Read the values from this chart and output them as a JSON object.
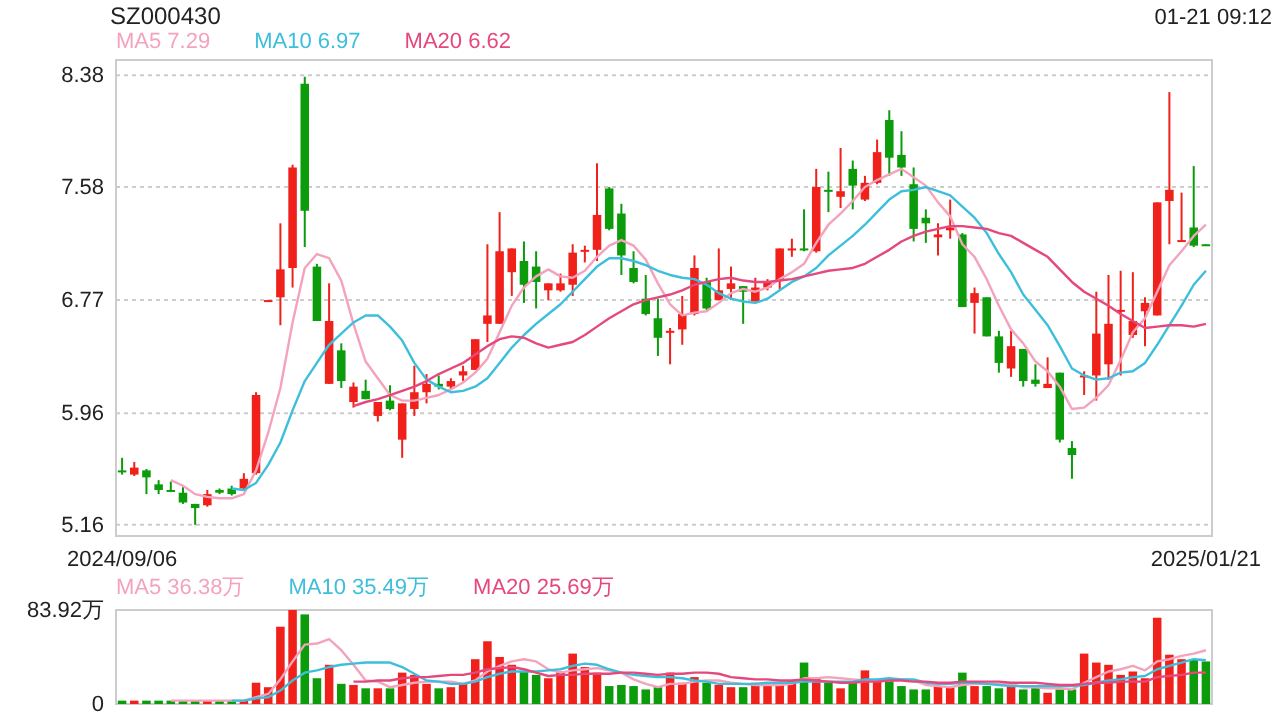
{
  "chart_data": [
    {
      "type": "candlestick",
      "title": "SZ000430",
      "annotations": [
        "01-21 09:12"
      ],
      "categories": [
        "2024/09/06",
        null,
        null,
        null,
        null,
        null,
        null,
        null,
        null,
        null,
        null,
        null,
        null,
        null,
        null,
        null,
        null,
        null,
        null,
        null,
        null,
        null,
        null,
        null,
        null,
        null,
        null,
        null,
        null,
        null,
        null,
        null,
        null,
        null,
        null,
        null,
        null,
        null,
        null,
        null,
        null,
        null,
        null,
        null,
        null,
        null,
        null,
        null,
        null,
        null,
        null,
        null,
        null,
        null,
        null,
        null,
        null,
        null,
        null,
        null,
        null,
        null,
        null,
        null,
        null,
        null,
        null,
        null,
        null,
        null,
        null,
        null,
        null,
        null,
        null,
        null,
        null,
        null,
        null,
        null,
        null,
        null,
        null,
        null,
        null,
        null,
        null,
        null,
        null,
        "2025/01/21"
      ],
      "ohlc": [
        [
          5.55,
          5.64,
          5.52,
          5.54
        ],
        [
          5.52,
          5.61,
          5.51,
          5.57
        ],
        [
          5.55,
          5.56,
          5.38,
          5.5
        ],
        [
          5.45,
          5.48,
          5.38,
          5.41
        ],
        [
          5.41,
          5.47,
          5.4,
          5.4
        ],
        [
          5.39,
          5.43,
          5.31,
          5.32
        ],
        [
          5.31,
          5.31,
          5.16,
          5.28
        ],
        [
          5.3,
          5.41,
          5.29,
          5.38
        ],
        [
          5.41,
          5.42,
          5.38,
          5.39
        ],
        [
          5.42,
          5.44,
          5.37,
          5.38
        ],
        [
          5.42,
          5.53,
          5.41,
          5.49
        ],
        [
          5.53,
          6.11,
          5.52,
          6.09
        ],
        [
          6.76,
          6.77,
          6.76,
          6.77
        ],
        [
          6.79,
          7.32,
          6.59,
          6.99
        ],
        [
          7.0,
          7.74,
          6.86,
          7.72
        ],
        [
          8.32,
          8.37,
          7.15,
          7.41
        ],
        [
          7.01,
          7.03,
          6.62,
          6.62
        ],
        [
          6.17,
          6.89,
          6.17,
          6.62
        ],
        [
          6.41,
          6.46,
          6.14,
          6.19
        ],
        [
          6.04,
          6.18,
          6.0,
          6.15
        ],
        [
          6.12,
          6.2,
          6.06,
          6.06
        ],
        [
          5.94,
          6.04,
          5.9,
          6.04
        ],
        [
          6.05,
          6.16,
          5.98,
          5.99
        ],
        [
          5.77,
          6.03,
          5.64,
          6.03
        ],
        [
          5.99,
          6.3,
          5.94,
          6.11
        ],
        [
          6.11,
          6.24,
          6.03,
          6.17
        ],
        [
          6.17,
          6.23,
          6.13,
          6.15
        ],
        [
          6.15,
          6.21,
          6.13,
          6.19
        ],
        [
          6.23,
          6.3,
          6.19,
          6.26
        ],
        [
          6.27,
          6.49,
          6.27,
          6.49
        ],
        [
          6.6,
          7.17,
          6.47,
          6.66
        ],
        [
          6.6,
          7.4,
          6.6,
          7.12
        ],
        [
          6.97,
          7.14,
          6.8,
          7.14
        ],
        [
          7.05,
          7.19,
          6.75,
          6.88
        ],
        [
          7.01,
          7.12,
          6.71,
          6.9
        ],
        [
          6.84,
          6.89,
          6.77,
          6.89
        ],
        [
          6.84,
          6.96,
          6.83,
          6.89
        ],
        [
          6.88,
          7.17,
          6.8,
          7.11
        ],
        [
          7.12,
          7.16,
          7.04,
          7.13
        ],
        [
          7.13,
          7.75,
          7.05,
          7.38
        ],
        [
          7.57,
          7.58,
          7.27,
          7.28
        ],
        [
          7.39,
          7.46,
          6.95,
          7.09
        ],
        [
          7.0,
          7.12,
          6.89,
          6.9
        ],
        [
          6.78,
          6.95,
          6.66,
          6.67
        ],
        [
          6.64,
          6.78,
          6.37,
          6.5
        ],
        [
          6.54,
          6.57,
          6.31,
          6.55
        ],
        [
          6.56,
          6.8,
          6.45,
          6.67
        ],
        [
          6.67,
          7.09,
          6.66,
          7.0
        ],
        [
          6.9,
          6.93,
          6.7,
          6.71
        ],
        [
          6.77,
          7.14,
          6.77,
          6.84
        ],
        [
          6.85,
          7.01,
          6.77,
          6.89
        ],
        [
          6.87,
          6.87,
          6.6,
          6.83
        ],
        [
          6.76,
          6.93,
          6.76,
          6.86
        ],
        [
          6.86,
          6.92,
          6.84,
          6.9
        ],
        [
          6.91,
          7.14,
          6.85,
          7.14
        ],
        [
          7.13,
          7.21,
          7.08,
          7.14
        ],
        [
          7.14,
          7.42,
          7.12,
          7.13
        ],
        [
          7.12,
          7.71,
          7.11,
          7.58
        ],
        [
          7.56,
          7.69,
          7.4,
          7.55
        ],
        [
          7.51,
          7.86,
          7.43,
          7.55
        ],
        [
          7.71,
          7.77,
          7.42,
          7.59
        ],
        [
          7.49,
          7.66,
          7.48,
          7.61
        ],
        [
          7.61,
          7.92,
          7.6,
          7.83
        ],
        [
          8.06,
          8.13,
          7.66,
          7.79
        ],
        [
          7.81,
          7.98,
          7.66,
          7.72
        ],
        [
          7.6,
          7.72,
          7.19,
          7.28
        ],
        [
          7.36,
          7.42,
          7.18,
          7.32
        ],
        [
          7.22,
          7.32,
          7.09,
          7.24
        ],
        [
          7.27,
          7.49,
          7.21,
          7.29
        ],
        [
          7.24,
          7.25,
          6.72,
          6.72
        ],
        [
          6.75,
          6.86,
          6.53,
          6.82
        ],
        [
          6.79,
          6.79,
          6.51,
          6.51
        ],
        [
          6.51,
          6.55,
          6.25,
          6.32
        ],
        [
          6.28,
          6.55,
          6.22,
          6.44
        ],
        [
          6.42,
          6.42,
          6.15,
          6.19
        ],
        [
          6.2,
          6.31,
          6.15,
          6.17
        ],
        [
          6.14,
          6.36,
          6.14,
          6.17
        ],
        [
          6.25,
          6.25,
          5.75,
          5.77
        ],
        [
          5.71,
          5.76,
          5.49,
          5.66
        ],
        [
          6.23,
          6.26,
          6.09,
          6.23
        ],
        [
          6.23,
          6.83,
          6.05,
          6.53
        ],
        [
          6.31,
          6.95,
          6.2,
          6.6
        ],
        [
          6.7,
          6.98,
          6.23,
          6.7
        ],
        [
          6.52,
          6.97,
          6.5,
          6.62
        ],
        [
          6.69,
          6.79,
          6.44,
          6.75
        ],
        [
          6.66,
          7.47,
          6.66,
          7.47
        ],
        [
          7.48,
          8.26,
          7.17,
          7.56
        ],
        [
          7.19,
          7.54,
          7.19,
          7.2
        ],
        [
          7.29,
          7.73,
          7.15,
          7.16
        ],
        [
          7.17,
          7.17,
          7.16,
          7.16
        ]
      ],
      "colors": [
        "#0b9b0b",
        "#f0201b",
        "#0b9b0b",
        "#0b9b0b",
        "#0b9b0b",
        "#0b9b0b",
        "#0b9b0b",
        "#f0201b",
        "#0b9b0b",
        "#0b9b0b",
        "#f0201b",
        "#f0201b",
        "#f0201b",
        "#f0201b",
        "#f0201b",
        "#0b9b0b",
        "#0b9b0b",
        "#f0201b",
        "#0b9b0b",
        "#f0201b",
        "#0b9b0b",
        "#f0201b",
        "#0b9b0b",
        "#f0201b",
        "#f0201b",
        "#f0201b",
        "#0b9b0b",
        "#f0201b",
        "#f0201b",
        "#f0201b",
        "#f0201b",
        "#f0201b",
        "#f0201b",
        "#0b9b0b",
        "#0b9b0b",
        "#f0201b",
        "#f0201b",
        "#f0201b",
        "#f0201b",
        "#f0201b",
        "#0b9b0b",
        "#0b9b0b",
        "#0b9b0b",
        "#0b9b0b",
        "#0b9b0b",
        "#f0201b",
        "#f0201b",
        "#f0201b",
        "#0b9b0b",
        "#f0201b",
        "#f0201b",
        "#0b9b0b",
        "#f0201b",
        "#f0201b",
        "#f0201b",
        "#f0201b",
        "#0b9b0b",
        "#f0201b",
        "#0b9b0b",
        "#f0201b",
        "#0b9b0b",
        "#f0201b",
        "#f0201b",
        "#0b9b0b",
        "#0b9b0b",
        "#0b9b0b",
        "#0b9b0b",
        "#f0201b",
        "#f0201b",
        "#0b9b0b",
        "#f0201b",
        "#0b9b0b",
        "#0b9b0b",
        "#f0201b",
        "#0b9b0b",
        "#0b9b0b",
        "#f0201b",
        "#0b9b0b",
        "#0b9b0b",
        "#f0201b",
        "#f0201b",
        "#f0201b",
        "#f0201b",
        "#f0201b",
        "#f0201b",
        "#f0201b",
        "#f0201b",
        "#f0201b",
        "#0b9b0b",
        "#0b9b0b"
      ],
      "ylim": [
        5.08,
        8.49
      ],
      "yticks": [
        5.16,
        5.96,
        6.77,
        7.58,
        8.38
      ],
      "grid": "y",
      "legend": "top left",
      "series": [
        {
          "type": "line",
          "name": "MA5 7.29",
          "color": "#f4a3bd",
          "values": [
            null,
            null,
            null,
            null,
            5.48,
            5.44,
            5.38,
            5.36,
            5.35,
            5.35,
            5.38,
            5.55,
            5.82,
            6.14,
            6.61,
            7.0,
            7.1,
            7.07,
            6.91,
            6.6,
            6.33,
            6.21,
            6.09,
            6.05,
            6.05,
            6.07,
            6.09,
            6.13,
            6.18,
            6.25,
            6.35,
            6.54,
            6.73,
            6.86,
            6.94,
            6.99,
            6.94,
            6.93,
            6.98,
            7.08,
            7.16,
            7.2,
            7.16,
            7.06,
            6.89,
            6.74,
            6.66,
            6.68,
            6.69,
            6.75,
            6.82,
            6.85,
            6.83,
            6.86,
            6.92,
            6.97,
            7.03,
            7.18,
            7.31,
            7.39,
            7.48,
            7.58,
            7.63,
            7.67,
            7.71,
            7.65,
            7.59,
            7.47,
            7.37,
            7.17,
            7.08,
            6.92,
            6.73,
            6.56,
            6.46,
            6.33,
            6.26,
            6.15,
            5.99,
            6.0,
            6.07,
            6.16,
            6.34,
            6.54,
            6.64,
            6.83,
            7.02,
            7.12,
            7.23,
            7.31
          ]
        },
        {
          "type": "line",
          "name": "MA10 6.97",
          "color": "#3dbfdc",
          "values": [
            null,
            null,
            null,
            null,
            null,
            null,
            null,
            null,
            null,
            5.42,
            5.41,
            5.46,
            5.59,
            5.75,
            5.98,
            6.19,
            6.32,
            6.45,
            6.53,
            6.61,
            6.66,
            6.66,
            6.58,
            6.48,
            6.32,
            6.2,
            6.15,
            6.11,
            6.12,
            6.15,
            6.21,
            6.32,
            6.43,
            6.52,
            6.6,
            6.67,
            6.74,
            6.83,
            6.92,
            7.01,
            7.07,
            7.07,
            7.05,
            7.02,
            6.98,
            6.95,
            6.93,
            6.92,
            6.88,
            6.82,
            6.78,
            6.76,
            6.75,
            6.78,
            6.84,
            6.9,
            6.94,
            7.0,
            7.09,
            7.16,
            7.23,
            7.31,
            7.4,
            7.49,
            7.55,
            7.56,
            7.58,
            7.55,
            7.52,
            7.44,
            7.36,
            7.25,
            7.1,
            6.97,
            6.81,
            6.7,
            6.59,
            6.44,
            6.28,
            6.23,
            6.2,
            6.21,
            6.25,
            6.26,
            6.32,
            6.45,
            6.59,
            6.73,
            6.88,
            6.98
          ]
        },
        {
          "type": "line",
          "name": "MA20 6.62",
          "color": "#e5487c",
          "values": [
            null,
            null,
            null,
            null,
            null,
            null,
            null,
            null,
            null,
            null,
            null,
            null,
            null,
            null,
            null,
            null,
            null,
            null,
            null,
            6.01,
            6.04,
            6.06,
            6.09,
            6.12,
            6.15,
            6.19,
            6.24,
            6.28,
            6.32,
            6.38,
            6.44,
            6.49,
            6.51,
            6.5,
            6.46,
            6.43,
            6.45,
            6.47,
            6.52,
            6.58,
            6.64,
            6.69,
            6.74,
            6.77,
            6.79,
            6.81,
            6.84,
            6.88,
            6.9,
            6.92,
            6.93,
            6.91,
            6.9,
            6.9,
            6.91,
            6.92,
            6.94,
            6.96,
            6.98,
            6.99,
            7.0,
            7.03,
            7.08,
            7.13,
            7.19,
            7.23,
            7.26,
            7.28,
            7.3,
            7.3,
            7.29,
            7.28,
            7.25,
            7.23,
            7.18,
            7.13,
            7.08,
            6.99,
            6.9,
            6.83,
            6.78,
            6.73,
            6.67,
            6.62,
            6.57,
            6.58,
            6.59,
            6.59,
            6.58,
            6.6
          ]
        }
      ]
    },
    {
      "type": "bar",
      "categories": [
        null,
        null,
        null,
        null,
        null,
        null,
        null,
        null,
        null,
        null,
        null,
        null,
        null,
        null,
        null,
        null,
        null,
        null,
        null,
        null,
        null,
        null,
        null,
        null,
        null,
        null,
        null,
        null,
        null,
        null,
        null,
        null,
        null,
        null,
        null,
        null,
        null,
        null,
        null,
        null,
        null,
        null,
        null,
        null,
        null,
        null,
        null,
        null,
        null,
        null,
        null,
        null,
        null,
        null,
        null,
        null,
        null,
        null,
        null,
        null,
        null,
        null,
        null,
        null,
        null,
        null,
        null,
        null,
        null,
        null,
        null,
        null,
        null,
        null,
        null,
        null,
        null,
        null,
        null,
        null,
        null,
        null,
        null,
        null,
        null,
        null,
        null,
        null,
        null,
        null
      ],
      "values": [
        3,
        3,
        3,
        3,
        3,
        3,
        3,
        3,
        3,
        3,
        3,
        19,
        15,
        69,
        83.92,
        80,
        23,
        35,
        18,
        17,
        14,
        14,
        14,
        28,
        26,
        18,
        14,
        15,
        18,
        40,
        56,
        42,
        35,
        29,
        26,
        23,
        29,
        45,
        33,
        28,
        16,
        17,
        16,
        13,
        15,
        28,
        19,
        24,
        19,
        17,
        15,
        15,
        19,
        17,
        19,
        21,
        37,
        23,
        19,
        14,
        19,
        30,
        22,
        22,
        16,
        13,
        13,
        16,
        15,
        28,
        16,
        16,
        14,
        16,
        13,
        16,
        10,
        13,
        13,
        45,
        37,
        35,
        26,
        29,
        23,
        77,
        44,
        40,
        40,
        38
      ],
      "colors": [
        "#0b9b0b",
        "#f0201b",
        "#0b9b0b",
        "#0b9b0b",
        "#0b9b0b",
        "#0b9b0b",
        "#0b9b0b",
        "#f0201b",
        "#0b9b0b",
        "#0b9b0b",
        "#f0201b",
        "#f0201b",
        "#f0201b",
        "#f0201b",
        "#f0201b",
        "#0b9b0b",
        "#0b9b0b",
        "#f0201b",
        "#0b9b0b",
        "#f0201b",
        "#0b9b0b",
        "#f0201b",
        "#0b9b0b",
        "#f0201b",
        "#f0201b",
        "#f0201b",
        "#0b9b0b",
        "#f0201b",
        "#f0201b",
        "#f0201b",
        "#f0201b",
        "#f0201b",
        "#f0201b",
        "#0b9b0b",
        "#0b9b0b",
        "#f0201b",
        "#f0201b",
        "#f0201b",
        "#f0201b",
        "#f0201b",
        "#0b9b0b",
        "#0b9b0b",
        "#0b9b0b",
        "#0b9b0b",
        "#0b9b0b",
        "#f0201b",
        "#f0201b",
        "#f0201b",
        "#0b9b0b",
        "#f0201b",
        "#f0201b",
        "#0b9b0b",
        "#f0201b",
        "#f0201b",
        "#f0201b",
        "#f0201b",
        "#0b9b0b",
        "#f0201b",
        "#0b9b0b",
        "#f0201b",
        "#0b9b0b",
        "#f0201b",
        "#f0201b",
        "#0b9b0b",
        "#0b9b0b",
        "#0b9b0b",
        "#0b9b0b",
        "#f0201b",
        "#f0201b",
        "#0b9b0b",
        "#f0201b",
        "#0b9b0b",
        "#0b9b0b",
        "#f0201b",
        "#0b9b0b",
        "#0b9b0b",
        "#f0201b",
        "#0b9b0b",
        "#0b9b0b",
        "#f0201b",
        "#f0201b",
        "#f0201b",
        "#f0201b",
        "#f0201b",
        "#f0201b",
        "#f0201b",
        "#f0201b",
        "#f0201b",
        "#0b9b0b",
        "#0b9b0b"
      ],
      "ylim": [
        0,
        83.92
      ],
      "yticks": [
        {
          "value": 0,
          "label": "0"
        },
        {
          "value": 83.92,
          "label": "83.92万"
        }
      ],
      "tick_labels": "y",
      "legend": "top left",
      "series": [
        {
          "type": "line",
          "name": "MA5 36.38万",
          "color": "#f4a3bd",
          "values": [
            null,
            null,
            null,
            null,
            3,
            3,
            3,
            3,
            3,
            3,
            3,
            6,
            9,
            22,
            38,
            53,
            54,
            58,
            48,
            35,
            21,
            20,
            15,
            17,
            19,
            20,
            20,
            20,
            18,
            21,
            29,
            34,
            38,
            40,
            38,
            31,
            28,
            30,
            31,
            32,
            30,
            28,
            22,
            18,
            15,
            18,
            18,
            20,
            21,
            21,
            19,
            18,
            17,
            17,
            17,
            18,
            23,
            23,
            24,
            23,
            22,
            21,
            21,
            21,
            22,
            21,
            17,
            16,
            15,
            17,
            18,
            18,
            18,
            18,
            15,
            15,
            14,
            14,
            13,
            19,
            24,
            29,
            31,
            34,
            30,
            38,
            40,
            43,
            45,
            48
          ]
        },
        {
          "type": "line",
          "name": "MA10 35.49万",
          "color": "#3dbfdc",
          "values": [
            null,
            null,
            null,
            null,
            null,
            null,
            null,
            null,
            null,
            3,
            3,
            5,
            6,
            12,
            21,
            28,
            30,
            33,
            35,
            36,
            37,
            37,
            37,
            33,
            27,
            21,
            20,
            18,
            18,
            20,
            24,
            27,
            29,
            29,
            29,
            30,
            31,
            34,
            36,
            35,
            31,
            28,
            26,
            25,
            24,
            24,
            23,
            21,
            20,
            18,
            18,
            18,
            18,
            19,
            19,
            19,
            20,
            20,
            20,
            20,
            20,
            22,
            22,
            23,
            22,
            22,
            19,
            18,
            18,
            19,
            19,
            18,
            17,
            16,
            16,
            16,
            16,
            16,
            16,
            17,
            19,
            21,
            22,
            24,
            25,
            31,
            34,
            37,
            40,
            39
          ]
        },
        {
          "type": "line",
          "name": "MA20 25.69万",
          "color": "#e5487c",
          "values": [
            null,
            null,
            null,
            null,
            null,
            null,
            null,
            null,
            null,
            null,
            null,
            null,
            null,
            null,
            null,
            null,
            null,
            null,
            null,
            20,
            20,
            21,
            21,
            23,
            24,
            24,
            25,
            26,
            26,
            28,
            31,
            32,
            33,
            31,
            28,
            25,
            26,
            26,
            27,
            27,
            27,
            28,
            28,
            27,
            26,
            27,
            27,
            28,
            28,
            27,
            24,
            23,
            22,
            22,
            21,
            21,
            22,
            21,
            20,
            19,
            19,
            20,
            20,
            21,
            21,
            20,
            20,
            19,
            19,
            20,
            20,
            20,
            20,
            19,
            19,
            19,
            18,
            17,
            17,
            18,
            19,
            19,
            20,
            20,
            20,
            24,
            25,
            26,
            28,
            28
          ]
        }
      ]
    }
  ]
}
